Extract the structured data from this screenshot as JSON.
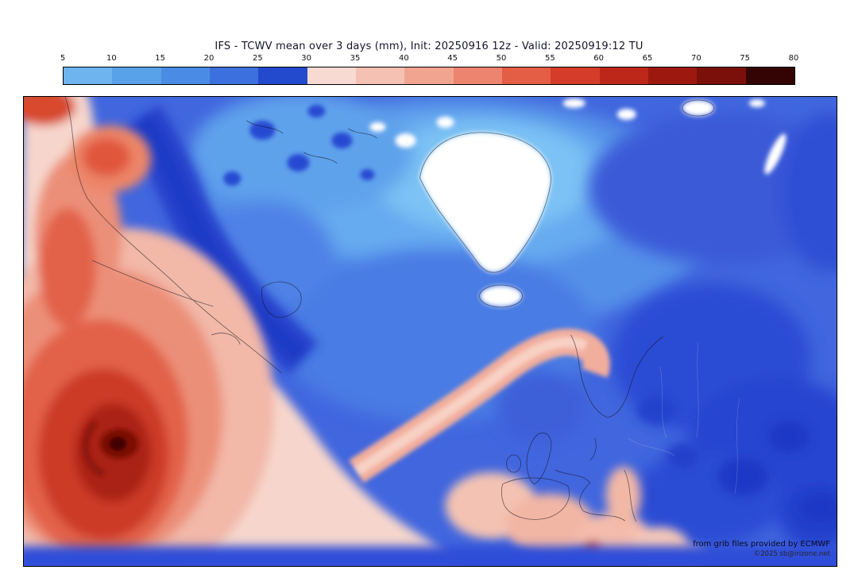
{
  "header": {
    "title": "IFS - TCWV mean over 3 days (mm), Init: 20250916 12z - Valid: 20250919:12 TU"
  },
  "colorbar": {
    "unit": "mm",
    "ticks": [
      "5",
      "10",
      "15",
      "20",
      "25",
      "30",
      "35",
      "40",
      "45",
      "50",
      "55",
      "60",
      "65",
      "70",
      "75",
      "80"
    ],
    "segments": [
      "#6eb5f0",
      "#58a2ea",
      "#4a8ce5",
      "#3c70de",
      "#2349cd",
      "#f7dad2",
      "#f5c1b2",
      "#f1a591",
      "#ec8470",
      "#e45d45",
      "#d63c2a",
      "#bd271a",
      "#9d1910",
      "#7b0f09",
      "#330403"
    ]
  },
  "map": {
    "attribution_line1": "from grib files provided by ECMWF",
    "attribution_line2": "©2025 sb@irizone.net"
  },
  "chart_data": {
    "type": "heatmap",
    "title": "IFS - TCWV mean over 3 days (mm), Init: 20250916 12z - Valid: 20250919:12 TU",
    "variable": "Total column water vapour, mean over 3 days",
    "unit": "mm",
    "levels": [
      5,
      10,
      15,
      20,
      25,
      30,
      35,
      40,
      45,
      50,
      55,
      60,
      65,
      70,
      75,
      80
    ],
    "palette": [
      "#6eb5f0",
      "#58a2ea",
      "#4a8ce5",
      "#3c70de",
      "#2349cd",
      "#f7dad2",
      "#f5c1b2",
      "#f1a591",
      "#ec8470",
      "#e45d45",
      "#d63c2a",
      "#bd271a",
      "#9d1910",
      "#7b0f09",
      "#330403"
    ],
    "region": "North Atlantic, Greenland and Europe",
    "features": [
      "Very moist air (40-80 mm) over the western Atlantic with a tropical cyclone core near the lower-left",
      "Dry air (10-25 mm) over Greenland, Iceland and the Nordic seas; Greenland shown white (below scale)",
      "Moist band (~30-40 mm) arcing from the central Atlantic toward the Norwegian coast",
      "Moderate moisture (~30-40 mm) over Iberia and the western Mediterranean",
      "Dry air (20-30 mm) over central and eastern Europe"
    ]
  }
}
